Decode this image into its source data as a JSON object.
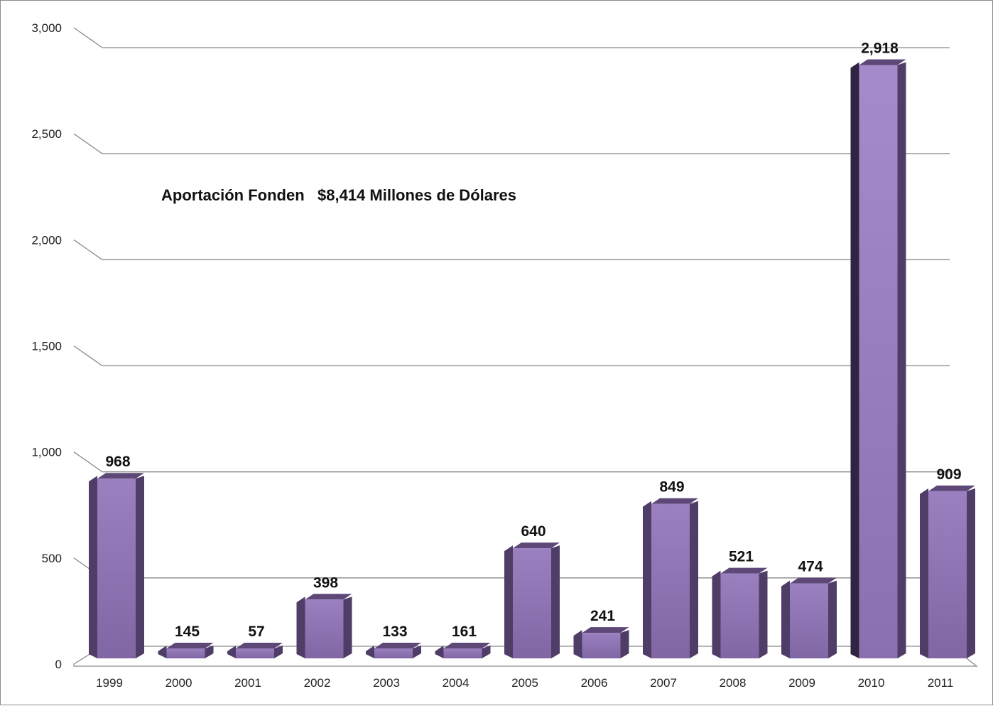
{
  "chart_data": {
    "type": "bar",
    "title": "",
    "xlabel": "",
    "ylabel": "",
    "annotation": "Aportación Fonden   $8,414 Millones de Dólares",
    "categories": [
      "1999",
      "2000",
      "2001",
      "2002",
      "2003",
      "2004",
      "2005",
      "2006",
      "2007",
      "2008",
      "2009",
      "2010",
      "2011"
    ],
    "values": [
      968,
      145,
      57,
      398,
      133,
      161,
      640,
      241,
      849,
      521,
      474,
      2918,
      909
    ],
    "value_labels": [
      "968",
      "145",
      "57",
      "398",
      "133",
      "161",
      "640",
      "241",
      "849",
      "521",
      "474",
      "2,918",
      "909"
    ],
    "ylim": [
      0,
      3000
    ],
    "yticks": [
      0,
      500,
      1000,
      1500,
      2000,
      2500,
      3000
    ],
    "ytick_labels": [
      "0",
      "500",
      "1,000",
      "1,500",
      "2,000",
      "2,500",
      "3,000"
    ],
    "grid": true,
    "legend": "none",
    "colors": {
      "bar_front": "#8368a6",
      "bar_highlight": "#a287c4",
      "bar_side": "#4f3d67",
      "bar_side_dark": "#2f2540",
      "bar_top": "#5e4878",
      "grid": "#8a8a8a"
    }
  }
}
